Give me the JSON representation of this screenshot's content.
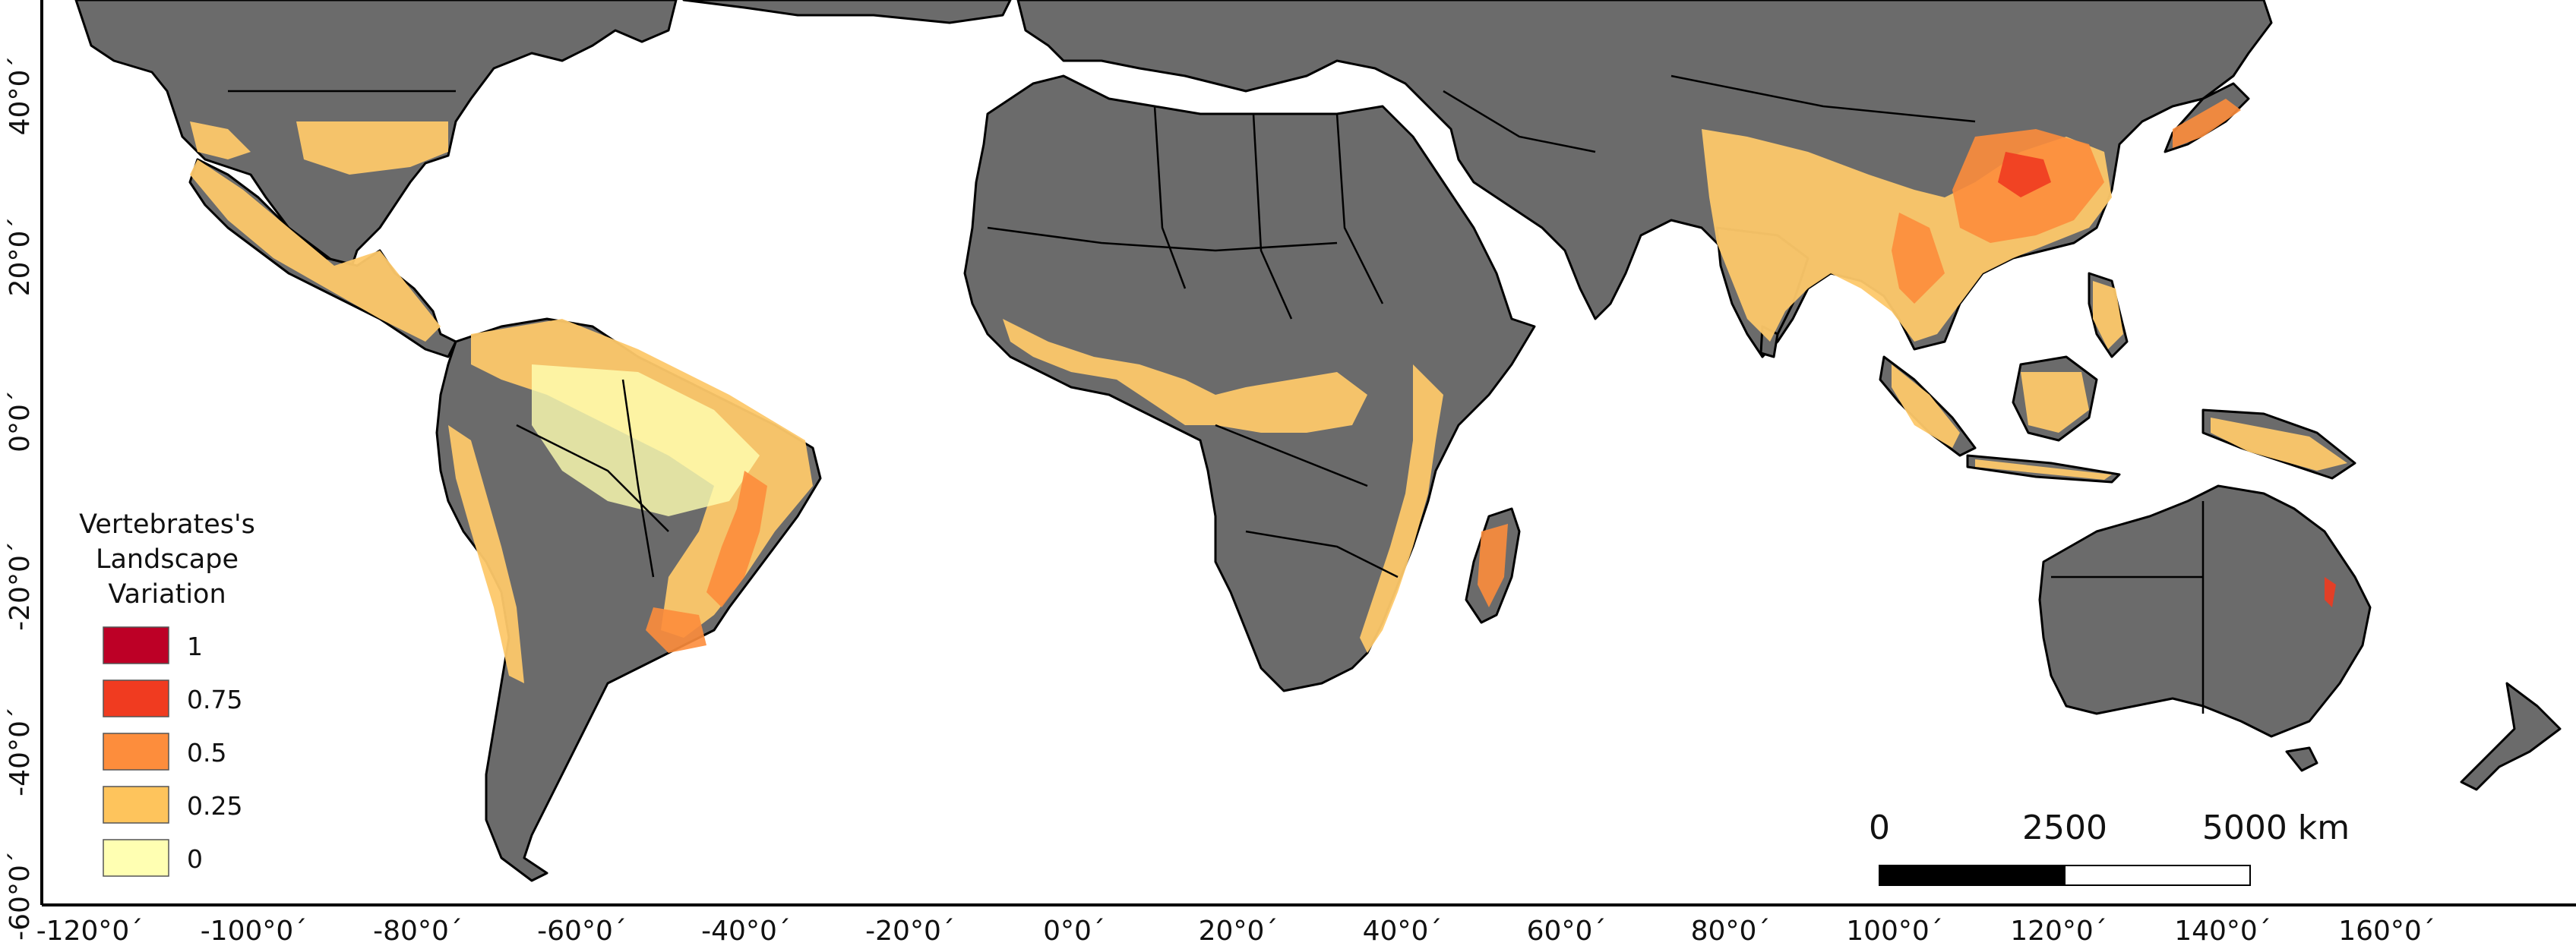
{
  "legend": {
    "title_lines": [
      "Vertebrates's",
      "Landscape",
      "Variation"
    ],
    "entries": [
      {
        "label": "1",
        "color": "#bd0026"
      },
      {
        "label": "0.75",
        "color": "#f03b20"
      },
      {
        "label": "0.5",
        "color": "#fd8d3c"
      },
      {
        "label": "0.25",
        "color": "#fec45c"
      },
      {
        "label": "0",
        "color": "#ffffb2"
      }
    ]
  },
  "axes": {
    "x_ticks": [
      "-120°0´",
      "-100°0´",
      "-80°0´",
      "-60°0´",
      "-40°0´",
      "-20°0´",
      "0°0´",
      "20°0´",
      "40°0´",
      "60°0´",
      "80°0´",
      "100°0´",
      "120°0´",
      "140°0´",
      "160°0´"
    ],
    "y_ticks": [
      "40°0´",
      "20°0´",
      "0°0´",
      "-20°0´",
      "-40°0´",
      "-60°0´"
    ]
  },
  "scale_bar": {
    "labels": [
      "0",
      "2500",
      "5000 km"
    ]
  },
  "colors": {
    "land": "#6b6b6b",
    "ocean": "#ffffff",
    "border": "#000000"
  }
}
